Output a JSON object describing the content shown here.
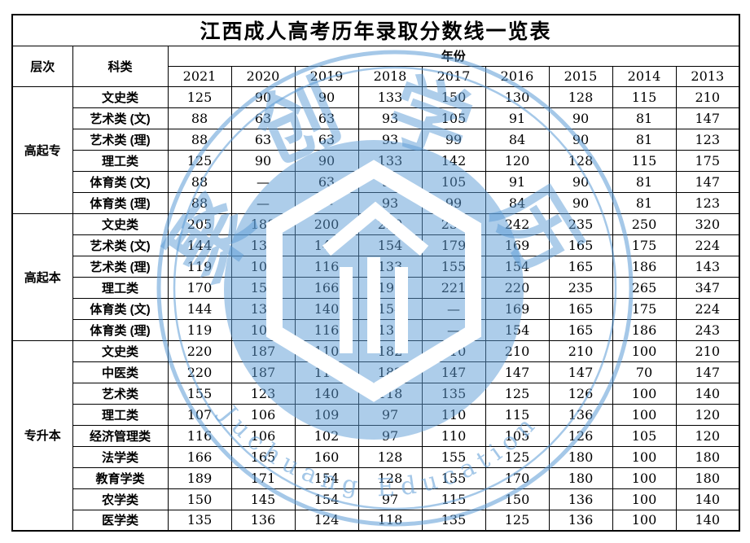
{
  "title": "江西成人高考历年录取分数线一览表",
  "header": {
    "level": "层次",
    "category": "科类",
    "year": "年份"
  },
  "years": [
    "2021",
    "2020",
    "2019",
    "2018",
    "2017",
    "2016",
    "2015",
    "2014",
    "2013"
  ],
  "groups": [
    {
      "level": "高起专",
      "rows": [
        {
          "category": "文史类",
          "values": [
            "125",
            "90",
            "90",
            "133",
            "150",
            "130",
            "128",
            "115",
            "210"
          ]
        },
        {
          "category": "艺术类 (文)",
          "values": [
            "88",
            "63",
            "63",
            "93",
            "105",
            "91",
            "90",
            "81",
            "147"
          ]
        },
        {
          "category": "艺术类 (理)",
          "values": [
            "88",
            "63",
            "63",
            "93",
            "99",
            "84",
            "90",
            "81",
            "123"
          ]
        },
        {
          "category": "理工类",
          "values": [
            "125",
            "90",
            "90",
            "133",
            "142",
            "120",
            "128",
            "115",
            "175"
          ]
        },
        {
          "category": "体育类 (文)",
          "values": [
            "88",
            "—",
            "63",
            "93",
            "105",
            "91",
            "90",
            "81",
            "147"
          ]
        },
        {
          "category": "体育类 (理)",
          "values": [
            "88",
            "—",
            "—",
            "93",
            "99",
            "84",
            "90",
            "81",
            "123"
          ]
        }
      ]
    },
    {
      "level": "高起本",
      "rows": [
        {
          "category": "文史类",
          "values": [
            "205",
            "188",
            "200",
            "220",
            "255",
            "242",
            "235",
            "250",
            "320"
          ]
        },
        {
          "category": "艺术类 (文)",
          "values": [
            "144",
            "132",
            "140",
            "154",
            "179",
            "169",
            "165",
            "175",
            "224"
          ]
        },
        {
          "category": "艺术类 (理)",
          "values": [
            "119",
            "107",
            "116",
            "133",
            "155",
            "154",
            "165",
            "186",
            "143"
          ]
        },
        {
          "category": "理工类",
          "values": [
            "170",
            "153",
            "166",
            "190",
            "221",
            "220",
            "235",
            "265",
            "347"
          ]
        },
        {
          "category": "体育类 (文)",
          "values": [
            "144",
            "132",
            "140",
            "154",
            "—",
            "169",
            "165",
            "175",
            "224"
          ]
        },
        {
          "category": "体育类 (理)",
          "values": [
            "119",
            "107",
            "116",
            "133",
            "—",
            "154",
            "165",
            "186",
            "243"
          ]
        }
      ]
    },
    {
      "level": "专升本",
      "rows": [
        {
          "category": "文史类",
          "values": [
            "220",
            "187",
            "110",
            "182",
            "210",
            "210",
            "210",
            "100",
            "210"
          ]
        },
        {
          "category": "中医类",
          "values": [
            "220",
            "187",
            "110",
            "182",
            "147",
            "147",
            "147",
            "70",
            "147"
          ]
        },
        {
          "category": "艺术类",
          "values": [
            "155",
            "123",
            "140",
            "118",
            "135",
            "125",
            "126",
            "100",
            "140"
          ]
        },
        {
          "category": "理工类",
          "values": [
            "107",
            "106",
            "109",
            "97",
            "110",
            "115",
            "136",
            "100",
            "120"
          ]
        },
        {
          "category": "经济管理类",
          "values": [
            "116",
            "106",
            "102",
            "97",
            "110",
            "105",
            "126",
            "105",
            "120"
          ]
        },
        {
          "category": "法学类",
          "values": [
            "166",
            "165",
            "160",
            "128",
            "155",
            "125",
            "180",
            "100",
            "180"
          ]
        },
        {
          "category": "教育学类",
          "values": [
            "189",
            "171",
            "154",
            "128",
            "155",
            "170",
            "180",
            "100",
            "180"
          ]
        },
        {
          "category": "农学类",
          "values": [
            "150",
            "145",
            "154",
            "97",
            "115",
            "150",
            "136",
            "100",
            "140"
          ]
        },
        {
          "category": "医学类",
          "values": [
            "135",
            "136",
            "124",
            "118",
            "135",
            "125",
            "136",
            "100",
            "140"
          ]
        }
      ]
    }
  ],
  "watermark": {
    "color": "#5B9BD5",
    "chars": [
      "聚",
      "创",
      "学",
      "历"
    ],
    "arc_text": "Juchuang Education"
  }
}
